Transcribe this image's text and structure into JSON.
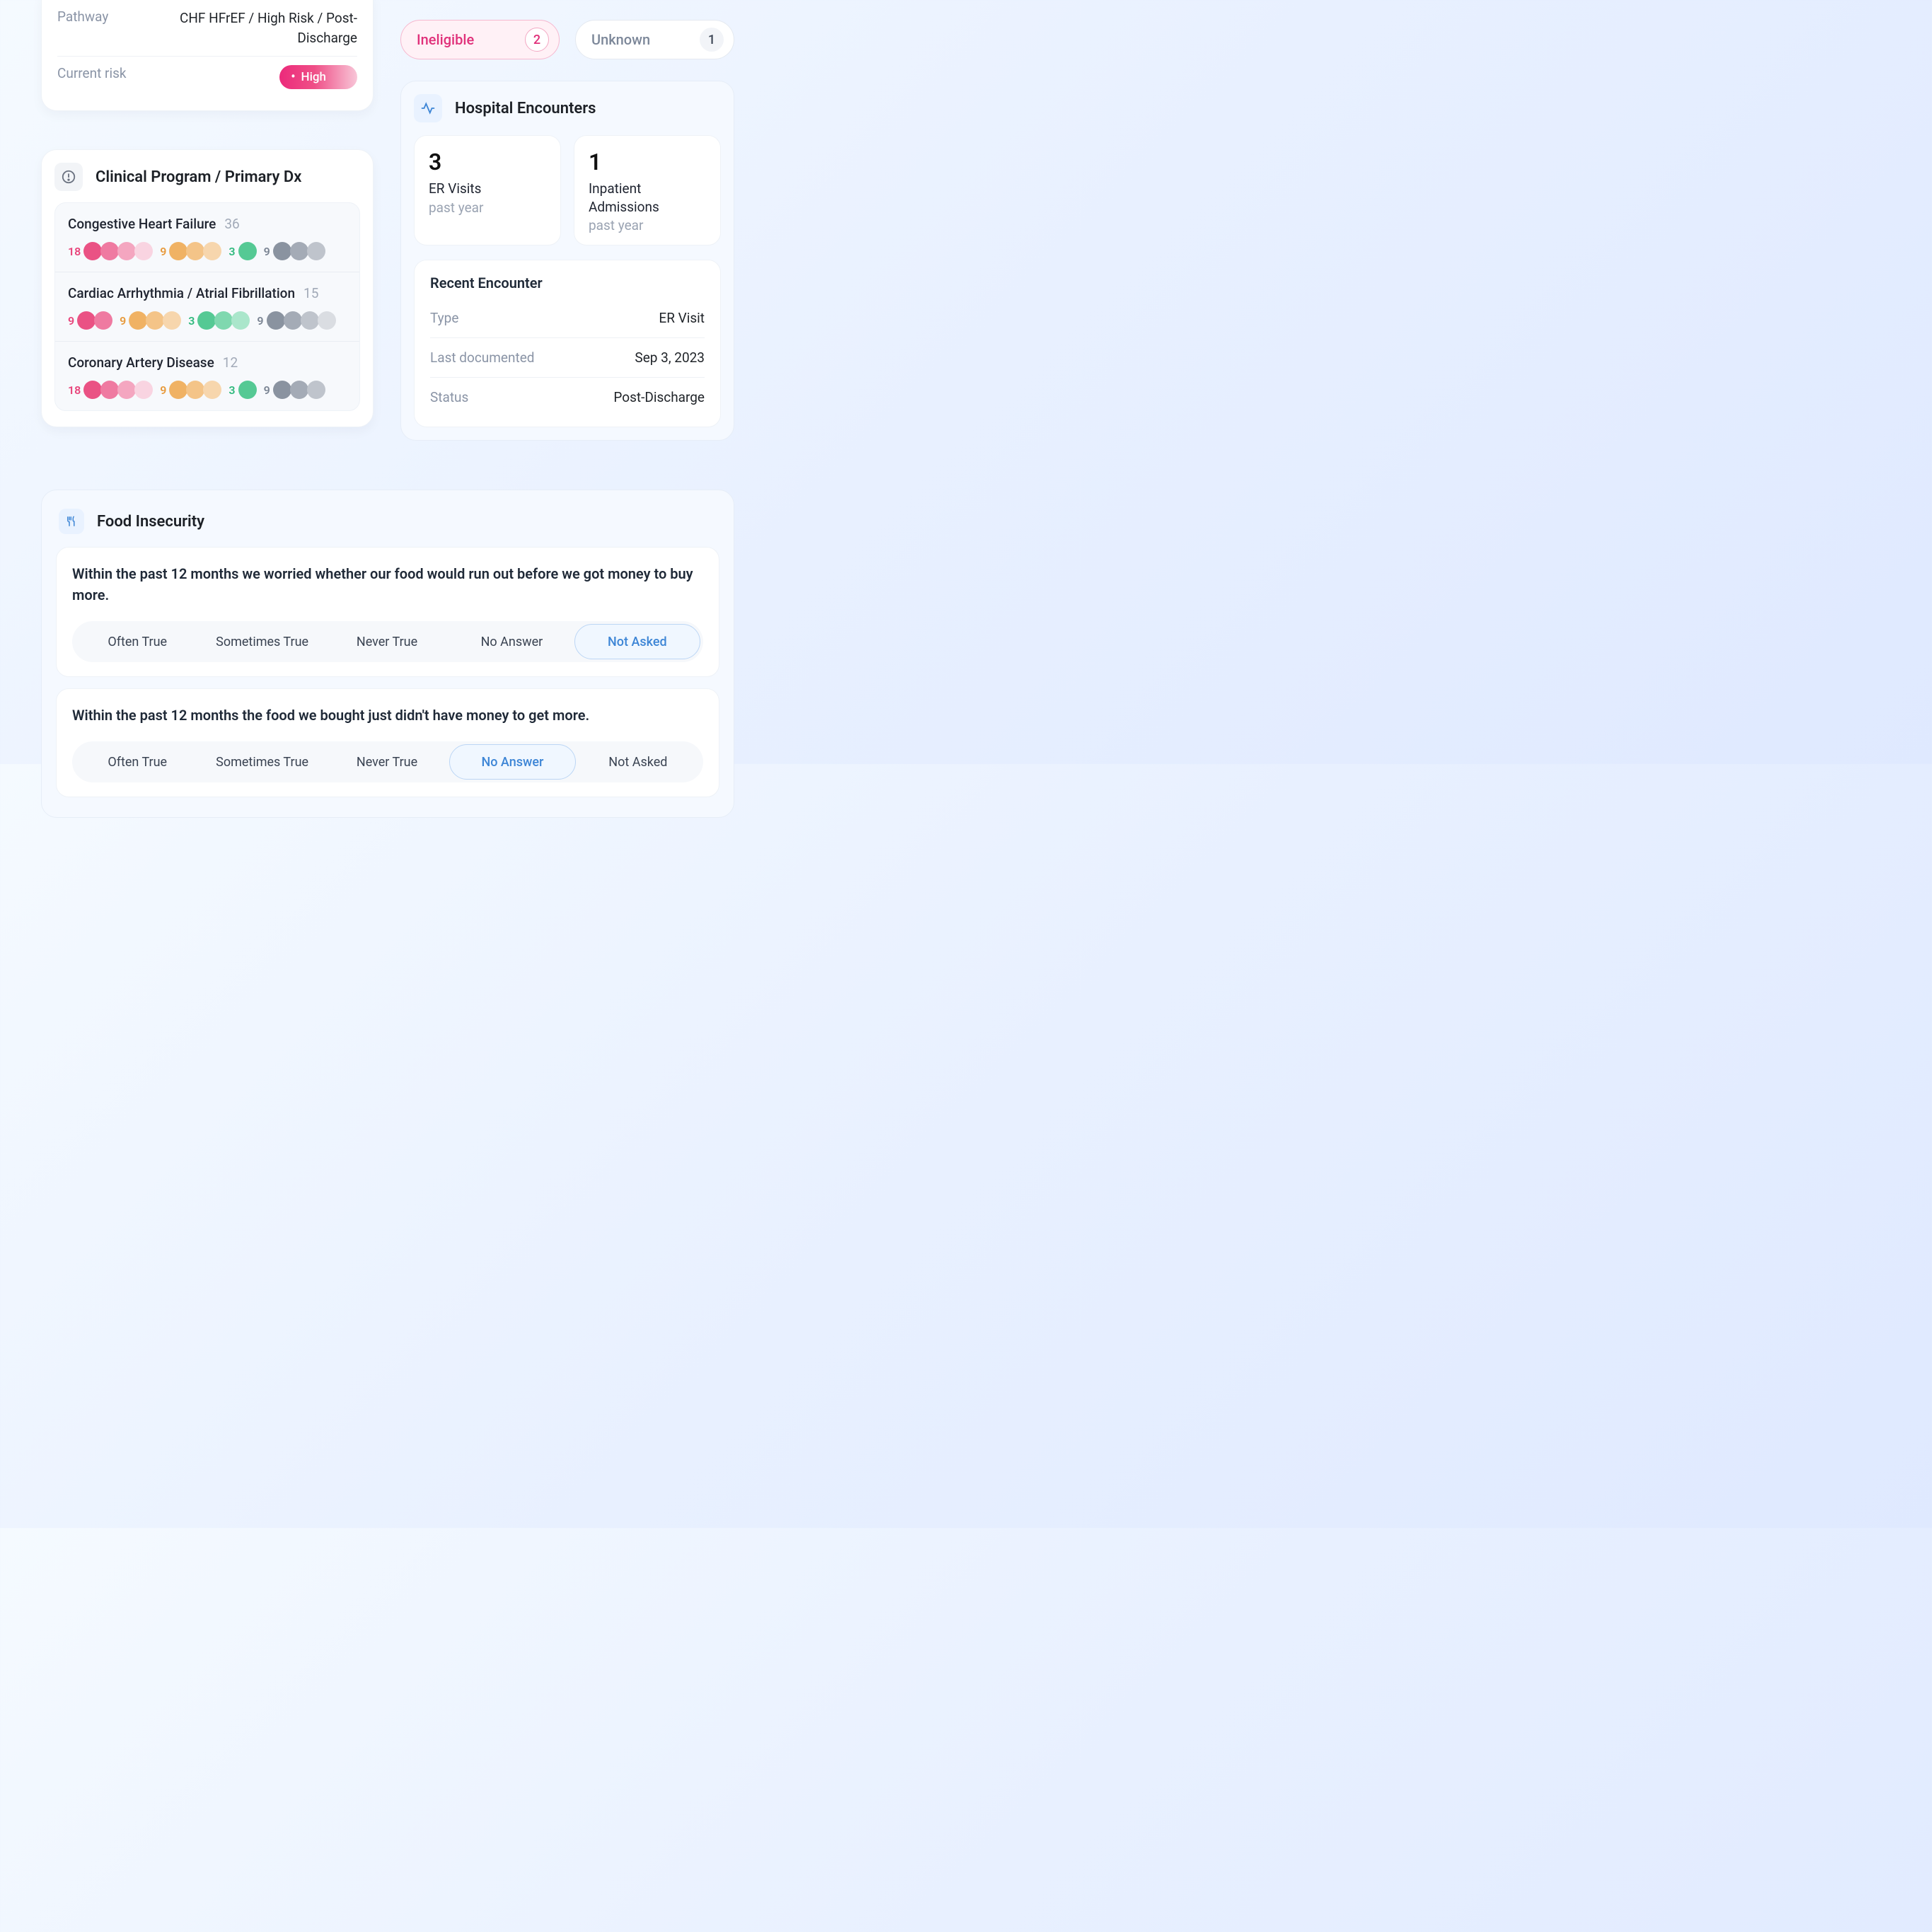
{
  "colors": {
    "page_bg_from": "#f5faff",
    "page_bg_to": "#dfe9ff",
    "card_bg": "#ffffff",
    "soft_card_bg": "#f5f9ff",
    "border": "#eef2f7",
    "soft_border": "#e6edf7",
    "text_primary": "#1f2328",
    "text_muted": "#8a94a6",
    "text_faint": "#a2aab8",
    "pink": "#e8467c",
    "orange": "#e79a3c",
    "green": "#2fb97d",
    "gray": "#7b8594",
    "chip_ineligible_bg": "#fff1f6",
    "chip_ineligible_border": "#f6b8cf",
    "chip_ineligible_text": "#e0317a",
    "chip_unknown_border": "#e4e9f0",
    "selected_opt_bg": "#f0f7ff",
    "selected_opt_border": "#bcd6f5",
    "selected_opt_text": "#3e86d6",
    "risk_gradient_from": "#ec2a7b",
    "risk_gradient_to": "#f8c6d8"
  },
  "typography": {
    "font_family": "-apple-system, Segoe UI, Roboto, Helvetica, Arial, sans-serif",
    "title_size_pt": 17,
    "body_size_pt": 14,
    "number_size_pt": 24
  },
  "dot_gradients": {
    "pink": [
      "#ea5284",
      "#ef7aa1",
      "#f4a6c0",
      "#f9d4e1"
    ],
    "orange": [
      "#f0b264",
      "#f4c488",
      "#f7d6ad",
      "#fbe9d5"
    ],
    "green": [
      "#55c994",
      "#7fd8af",
      "#aae6cb",
      "#d5f3e6"
    ],
    "gray": [
      "#8a93a0",
      "#a4abb6",
      "#bfc4cc",
      "#dadde2"
    ]
  },
  "pathway": {
    "label": "Pathway",
    "value": "CHF HFrEF / High Risk / Post-Discharge",
    "risk_label": "Current risk",
    "risk_value": "High"
  },
  "clinical": {
    "title": "Clinical Program / Primary Dx",
    "items": [
      {
        "name": "Congestive Heart Failure",
        "total": "36",
        "groups": [
          {
            "color": "pink",
            "count": "18",
            "dots": 4
          },
          {
            "color": "orange",
            "count": "9",
            "dots": 3
          },
          {
            "color": "green",
            "count": "3",
            "dots": 1
          },
          {
            "color": "gray",
            "count": "9",
            "dots": 3
          }
        ]
      },
      {
        "name": "Cardiac Arrhythmia / Atrial Fibrillation",
        "total": "15",
        "groups": [
          {
            "color": "pink",
            "count": "9",
            "dots": 2
          },
          {
            "color": "orange",
            "count": "9",
            "dots": 3
          },
          {
            "color": "green",
            "count": "3",
            "dots": 3
          },
          {
            "color": "gray",
            "count": "9",
            "dots": 4
          }
        ]
      },
      {
        "name": "Coronary Artery Disease",
        "total": "12",
        "groups": [
          {
            "color": "pink",
            "count": "18",
            "dots": 4
          },
          {
            "color": "orange",
            "count": "9",
            "dots": 3
          },
          {
            "color": "green",
            "count": "3",
            "dots": 1
          },
          {
            "color": "gray",
            "count": "9",
            "dots": 3
          }
        ]
      }
    ]
  },
  "chips": {
    "ineligible": {
      "label": "Ineligible",
      "count": "2"
    },
    "unknown": {
      "label": "Unknown",
      "count": "1"
    }
  },
  "hospital": {
    "title": "Hospital Encounters",
    "tiles": [
      {
        "num": "3",
        "label": "ER Visits",
        "sub": "past year"
      },
      {
        "num": "1",
        "label": "Inpatient Admissions",
        "sub": "past year"
      }
    ],
    "recent": {
      "title": "Recent Encounter",
      "rows": [
        {
          "key": "Type",
          "val": "ER Visit"
        },
        {
          "key": "Last documented",
          "val": "Sep 3, 2023"
        },
        {
          "key": "Status",
          "val": "Post-Discharge"
        }
      ]
    }
  },
  "food": {
    "title": "Food Insecurity",
    "options": [
      "Often True",
      "Sometimes True",
      "Never True",
      "No Answer",
      "Not Asked"
    ],
    "questions": [
      {
        "text": "Within the past 12 months we worried whether our food would run out before we got money to buy more.",
        "selected_index": 4
      },
      {
        "text": "Within the past 12 months the food we bought just didn't have money to get more.",
        "selected_index": 3
      }
    ]
  }
}
